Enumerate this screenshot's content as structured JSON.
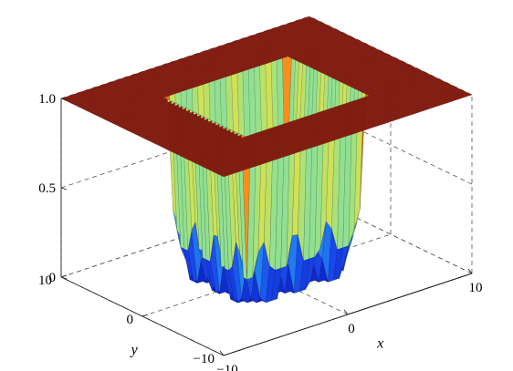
{
  "chart_data": {
    "type": "surface",
    "title": "",
    "xlabel": "x",
    "ylabel": "y",
    "zlabel": "",
    "xlim": [
      -10,
      10
    ],
    "ylim": [
      -10,
      10
    ],
    "zlim": [
      0,
      1
    ],
    "x_ticks": [
      {
        "value": -10,
        "label": "−10"
      },
      {
        "value": 0,
        "label": "0"
      },
      {
        "value": 10,
        "label": "10"
      }
    ],
    "y_ticks": [
      {
        "value": -10,
        "label": "−10"
      },
      {
        "value": 0,
        "label": "0"
      },
      {
        "value": 10,
        "label": "10"
      }
    ],
    "z_ticks": [
      {
        "value": 0,
        "label": "0"
      },
      {
        "value": 0.5,
        "label": "0.5"
      },
      {
        "value": 1,
        "label": "1.0"
      }
    ],
    "surface": {
      "outer_value": 1.0,
      "well_half_width": 5,
      "well_bottom_value": 0.0
    },
    "grid": true,
    "colormap": "jet",
    "colors": {
      "high": "#8b1a0e",
      "low": "#0a2fd6"
    }
  }
}
